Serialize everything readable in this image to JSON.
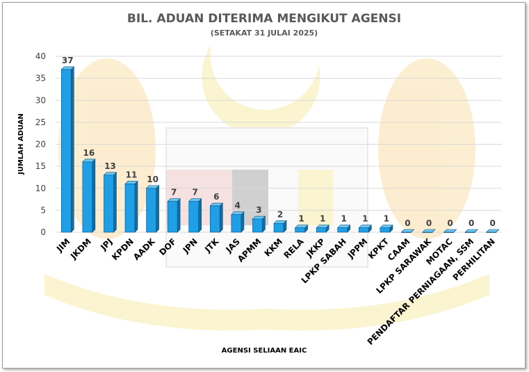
{
  "chart_data": {
    "type": "bar",
    "title": "BIL. ADUAN DITERIMA MENGIKUT AGENSI",
    "subtitle": "(SETAKAT 31 JULAI 2025)",
    "xlabel": "AGENSI SELIAAN EAIC",
    "ylabel": "JUMLAH ADUAN",
    "ylim": [
      0,
      40
    ],
    "yticks": [
      0,
      5,
      10,
      15,
      20,
      25,
      30,
      35,
      40
    ],
    "grid": true,
    "categories": [
      "JIM",
      "JKDM",
      "JPJ",
      "KPDN",
      "AADK",
      "DOF",
      "JPN",
      "JTK",
      "JAS",
      "APMM",
      "KKM",
      "RELA",
      "JKKP",
      "LPKP SABAH",
      "JPPM",
      "KPKT",
      "CAAM",
      "LPKP SARAWAK",
      "MOTAC",
      "PENDAFTAR PERNIAGAAN, SSM",
      "PERHILITAN"
    ],
    "values": [
      37,
      16,
      13,
      11,
      10,
      7,
      7,
      6,
      4,
      3,
      2,
      1,
      1,
      1,
      1,
      1,
      0,
      0,
      0,
      0,
      0
    ],
    "data_labels": [
      "37",
      "16",
      "13",
      "11",
      "10",
      "7",
      "7",
      "6",
      "4",
      "3",
      "2",
      "1",
      "1",
      "1",
      "1",
      "1",
      "0",
      "0",
      "0",
      "0",
      "0"
    ],
    "colors": {
      "bar_front": "#1f9fe6",
      "bar_side": "#0f6ea8",
      "bar_top": "#6cc7f5",
      "bar_outline": "#0b4f7a",
      "gridline": "#d9d9d9"
    }
  }
}
